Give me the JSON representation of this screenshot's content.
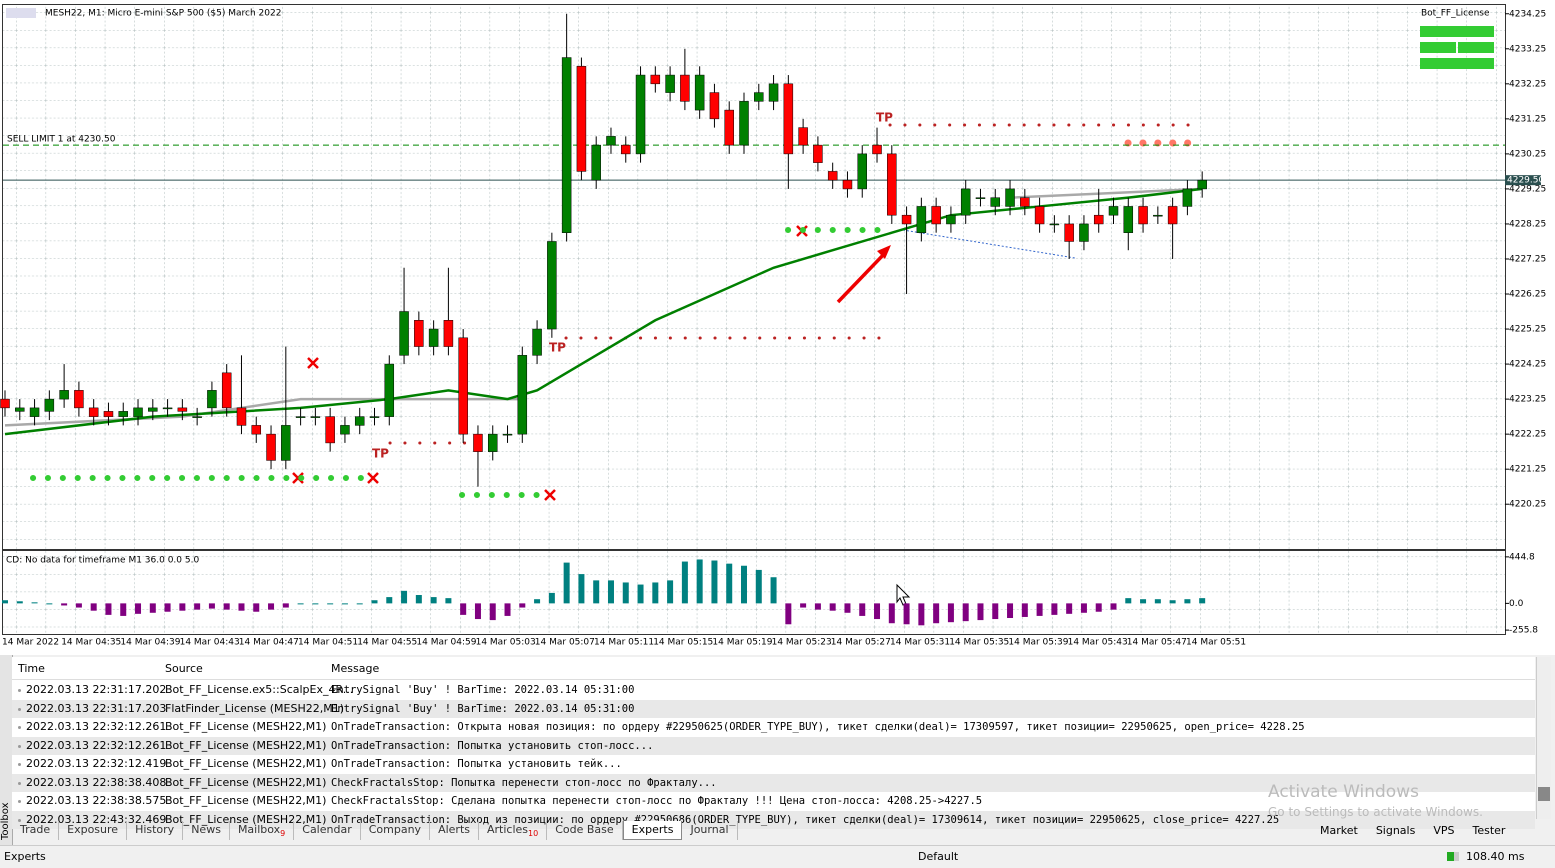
{
  "chart_data": [
    {
      "type": "candlestick",
      "title": "MESH22, M1:  Micro E-mini S&P 500 ($5) March 2022",
      "candles": [
        [
          4223.25,
          4223.5,
          4222.75,
          4223.0
        ],
        [
          4222.9,
          4223.25,
          4222.65,
          4223.0
        ],
        [
          4222.75,
          4223.25,
          4222.5,
          4223.0
        ],
        [
          4222.9,
          4223.5,
          4222.65,
          4223.25
        ],
        [
          4223.25,
          4224.25,
          4223.0,
          4223.5
        ],
        [
          4223.5,
          4223.75,
          4222.75,
          4223.0
        ],
        [
          4223.0,
          4223.25,
          4222.5,
          4222.75
        ],
        [
          4222.9,
          4223.15,
          4222.5,
          4222.75
        ],
        [
          4222.75,
          4223.15,
          4222.5,
          4222.9
        ],
        [
          4222.75,
          4223.25,
          4222.5,
          4223.0
        ],
        [
          4222.9,
          4223.25,
          4222.65,
          4223.0
        ],
        [
          4223.0,
          4223.25,
          4222.75,
          4223.0
        ],
        [
          4223.0,
          4223.25,
          4222.65,
          4222.9
        ],
        [
          4222.75,
          4223.0,
          4222.5,
          4222.75
        ],
        [
          4223.0,
          4223.75,
          4222.75,
          4223.5
        ],
        [
          4224.0,
          4224.25,
          4222.75,
          4223.0
        ],
        [
          4223.0,
          4224.5,
          4222.25,
          4222.5
        ],
        [
          4222.5,
          4222.75,
          4222.0,
          4222.25
        ],
        [
          4222.25,
          4222.5,
          4221.25,
          4221.5
        ],
        [
          4221.5,
          4224.75,
          4221.25,
          4222.5
        ],
        [
          4222.75,
          4223.0,
          4222.5,
          4222.75
        ],
        [
          4222.75,
          4223.0,
          4222.5,
          4222.75
        ],
        [
          4222.75,
          4223.0,
          4221.75,
          4222.0
        ],
        [
          4222.25,
          4222.75,
          4222.0,
          4222.5
        ],
        [
          4222.5,
          4223.0,
          4222.25,
          4222.75
        ],
        [
          4222.75,
          4223.0,
          4222.5,
          4222.75
        ],
        [
          4222.75,
          4224.5,
          4222.5,
          4224.25
        ],
        [
          4224.5,
          4227.0,
          4224.25,
          4225.75
        ],
        [
          4225.5,
          4225.75,
          4224.5,
          4224.75
        ],
        [
          4224.75,
          4225.5,
          4224.5,
          4225.25
        ],
        [
          4225.5,
          4227.0,
          4224.5,
          4224.75
        ],
        [
          4225.0,
          4225.25,
          4222.0,
          4222.25
        ],
        [
          4222.25,
          4222.5,
          4220.75,
          4221.75
        ],
        [
          4221.75,
          4222.5,
          4221.5,
          4222.25
        ],
        [
          4222.25,
          4222.5,
          4222.0,
          4222.25
        ],
        [
          4222.25,
          4224.75,
          4222.0,
          4224.5
        ],
        [
          4224.5,
          4225.5,
          4224.25,
          4225.25
        ],
        [
          4225.25,
          4228.0,
          4225.0,
          4227.75
        ],
        [
          4228.0,
          4234.25,
          4227.75,
          4233.0
        ],
        [
          4232.75,
          4233.0,
          4229.5,
          4229.75
        ],
        [
          4229.5,
          4230.75,
          4229.25,
          4230.5
        ],
        [
          4230.5,
          4231.0,
          4230.25,
          4230.75
        ],
        [
          4230.5,
          4230.75,
          4230.0,
          4230.25
        ],
        [
          4230.25,
          4232.75,
          4230.0,
          4232.5
        ],
        [
          4232.5,
          4232.75,
          4232.0,
          4232.25
        ],
        [
          4232.0,
          4232.75,
          4231.75,
          4232.5
        ],
        [
          4232.5,
          4233.25,
          4231.5,
          4231.75
        ],
        [
          4231.5,
          4232.75,
          4231.25,
          4232.5
        ],
        [
          4232.0,
          4232.25,
          4231.0,
          4231.25
        ],
        [
          4231.5,
          4231.75,
          4230.25,
          4230.5
        ],
        [
          4230.5,
          4232.0,
          4230.25,
          4231.75
        ],
        [
          4231.75,
          4232.25,
          4231.5,
          4232.0
        ],
        [
          4231.75,
          4232.5,
          4231.5,
          4232.25
        ],
        [
          4232.25,
          4232.5,
          4229.25,
          4230.25
        ],
        [
          4231.0,
          4231.25,
          4230.25,
          4230.5
        ],
        [
          4230.5,
          4230.75,
          4229.75,
          4230.0
        ],
        [
          4229.75,
          4230.0,
          4229.25,
          4229.5
        ],
        [
          4229.5,
          4229.75,
          4229.0,
          4229.25
        ],
        [
          4229.25,
          4230.5,
          4229.0,
          4230.25
        ],
        [
          4230.5,
          4231.0,
          4230.0,
          4230.25
        ],
        [
          4230.25,
          4230.5,
          4228.25,
          4228.5
        ],
        [
          4228.5,
          4228.75,
          4226.25,
          4228.25
        ],
        [
          4228.0,
          4229.0,
          4227.75,
          4228.75
        ],
        [
          4228.75,
          4229.0,
          4228.0,
          4228.25
        ],
        [
          4228.25,
          4228.75,
          4228.0,
          4228.5
        ],
        [
          4228.5,
          4229.5,
          4228.25,
          4229.25
        ],
        [
          4229.0,
          4229.25,
          4228.75,
          4229.0
        ],
        [
          4228.75,
          4229.25,
          4228.5,
          4229.0
        ],
        [
          4228.75,
          4229.5,
          4228.5,
          4229.25
        ],
        [
          4229.0,
          4229.25,
          4228.5,
          4228.75
        ],
        [
          4228.75,
          4229.0,
          4228.0,
          4228.25
        ],
        [
          4228.25,
          4228.5,
          4228.0,
          4228.25
        ],
        [
          4228.25,
          4228.5,
          4227.25,
          4227.75
        ],
        [
          4227.75,
          4228.5,
          4227.5,
          4228.25
        ],
        [
          4228.5,
          4229.25,
          4228.0,
          4228.25
        ],
        [
          4228.5,
          4229.0,
          4228.25,
          4228.75
        ],
        [
          4228.0,
          4229.0,
          4227.5,
          4228.75
        ],
        [
          4228.75,
          4229.0,
          4228.0,
          4228.25
        ],
        [
          4228.5,
          4228.75,
          4228.25,
          4228.5
        ],
        [
          4228.75,
          4229.0,
          4227.25,
          4228.25
        ],
        [
          4228.75,
          4229.5,
          4228.5,
          4229.25
        ],
        [
          4229.25,
          4229.75,
          4229.0,
          4229.5
        ]
      ],
      "ma_fast": {
        "x": [
          0,
          10,
          20,
          26,
          30,
          34,
          36,
          40,
          44,
          48,
          52,
          56,
          60,
          64,
          70,
          76,
          81
        ],
        "values": [
          4222.25,
          4222.75,
          4223.0,
          4223.25,
          4223.5,
          4223.25,
          4223.5,
          4224.5,
          4225.5,
          4226.25,
          4227.0,
          4227.5,
          4228.0,
          4228.5,
          4228.75,
          4229.0,
          4229.25
        ]
      },
      "ma_slow": {
        "x": [
          0,
          12,
          20,
          28,
          35,
          null,
          68,
          81
        ],
        "values": [
          4222.5,
          4222.75,
          4223.25,
          4223.25,
          4223.25,
          null,
          4229.0,
          4229.25
        ]
      },
      "ylim": [
        4219.0,
        4234.5
      ],
      "yticks": [
        {
          "value": 4234.25,
          "label": "4234.25"
        },
        {
          "value": 4233.25,
          "label": "4233.25"
        },
        {
          "value": 4232.25,
          "label": "4232.25"
        },
        {
          "value": 4231.25,
          "label": "4231.25"
        },
        {
          "value": 4230.25,
          "label": "4230.25"
        },
        {
          "value": 4229.25,
          "label": "4229.25"
        },
        {
          "value": 4228.25,
          "label": "4228.25"
        },
        {
          "value": 4227.25,
          "label": "4227.25"
        },
        {
          "value": 4226.25,
          "label": "4226.25"
        },
        {
          "value": 4225.25,
          "label": "4225.25"
        },
        {
          "value": 4224.25,
          "label": "4224.25"
        },
        {
          "value": 4223.25,
          "label": "4223.25"
        },
        {
          "value": 4222.25,
          "label": "4222.25"
        },
        {
          "value": 4221.25,
          "label": "4221.25"
        },
        {
          "value": 4220.25,
          "label": "4220.25"
        }
      ],
      "price_line": {
        "value": 4229.5,
        "label": "4229.50"
      },
      "order_line": {
        "value": 4230.5,
        "label": "SELL LIMIT 1 at 4230.50"
      },
      "annotations": [
        "TP",
        "TP",
        "TP"
      ],
      "xtick_labels": [
        "14 Mar 2022",
        "14 Mar 04:35",
        "14 Mar 04:39",
        "14 Mar 04:43",
        "14 Mar 04:47",
        "14 Mar 04:51",
        "14 Mar 04:55",
        "14 Mar 04:59",
        "14 Mar 05:03",
        "14 Mar 05:07",
        "14 Mar 05:11",
        "14 Mar 05:15",
        "14 Mar 05:19",
        "14 Mar 05:23",
        "14 Mar 05:27",
        "14 Mar 05:31",
        "14 Mar 05:35",
        "14 Mar 05:39",
        "14 Mar 05:43",
        "14 Mar 05:47",
        "14 Mar 05:51"
      ],
      "colors": {
        "up": "#008000",
        "down": "#ff0000",
        "ma_fast": "#008000",
        "ma_slow": "#a9a9a9"
      }
    },
    {
      "type": "bar",
      "title": "CD: No data for timeframe M1 36.0 0.0 5.0",
      "values": [
        30,
        20,
        10,
        0,
        -20,
        -40,
        -70,
        -110,
        -120,
        -100,
        -90,
        -80,
        -70,
        -60,
        -50,
        -60,
        -70,
        -80,
        -60,
        -40,
        0,
        0,
        0,
        0,
        0,
        30,
        60,
        120,
        80,
        60,
        50,
        -110,
        -150,
        -160,
        -120,
        -40,
        40,
        100,
        390,
        280,
        220,
        220,
        200,
        180,
        200,
        220,
        400,
        420,
        410,
        380,
        360,
        320,
        250,
        -200,
        -40,
        -60,
        -70,
        -90,
        -120,
        -150,
        -190,
        -200,
        -210,
        -190,
        -180,
        -170,
        -160,
        -150,
        -140,
        -130,
        -120,
        -110,
        -100,
        -90,
        -80,
        -60,
        50,
        40,
        40,
        30,
        40,
        50
      ],
      "ylim": [
        -293,
        501
      ],
      "yticks": [
        {
          "value": 444.8,
          "label": "444.8"
        },
        {
          "value": 0,
          "label": "0.0"
        },
        {
          "value": -255.8,
          "label": "-255.8"
        }
      ],
      "colors": {
        "pos": "#008080",
        "neg": "#800080"
      }
    }
  ],
  "panel": {
    "bot_label": "Bot_FF_License"
  },
  "log": {
    "columns": [
      "Time",
      "Source",
      "Message"
    ],
    "rows": [
      [
        "2022.03.13 22:31:17.202",
        "Bot_FF_License.ex5::ScalpEx_4R...",
        "EntrySignal 'Buy' ! BarTime: 2022.03.14 05:31:00"
      ],
      [
        "2022.03.13 22:31:17.203",
        "FlatFinder_License (MESH22,M1)",
        "EntrySignal 'Buy' ! BarTime: 2022.03.14 05:31:00"
      ],
      [
        "2022.03.13 22:32:12.261",
        "Bot_FF_License (MESH22,M1)",
        "OnTradeTransaction: Открыта новая позиция: по ордеру #22950625(ORDER_TYPE_BUY), тикет сделки(deal)= 17309597, тикет позиции= 22950625, open_price= 4228.25"
      ],
      [
        "2022.03.13 22:32:12.261",
        "Bot_FF_License (MESH22,M1)",
        "OnTradeTransaction: Попытка установить стоп-лосс..."
      ],
      [
        "2022.03.13 22:32:12.419",
        "Bot_FF_License (MESH22,M1)",
        "OnTradeTransaction: Попытка установить тейк..."
      ],
      [
        "2022.03.13 22:38:38.408",
        "Bot_FF_License (MESH22,M1)",
        "CheckFractalsStop: Попытка перенести стоп-лосс по Фракталу..."
      ],
      [
        "2022.03.13 22:38:38.575",
        "Bot_FF_License (MESH22,M1)",
        "CheckFractalsStop: Сделана попытка перенести стоп-лосс по Фракталу !!! Цена стоп-лосса: 4208.25->4227.5"
      ],
      [
        "2022.03.13 22:43:32.469",
        "Bot_FF_License (MESH22,M1)",
        "OnTradeTransaction: Выход из позиции: по ордеру #22950686(ORDER_TYPE_BUY), тикет сделки(deal)= 17309614, тикет позиции= 22950625, close_price= 4227.25"
      ]
    ]
  },
  "tabs": [
    {
      "label": "Trade"
    },
    {
      "label": "Exposure"
    },
    {
      "label": "History"
    },
    {
      "label": "News"
    },
    {
      "label": "Mailbox",
      "badge": "9"
    },
    {
      "label": "Calendar"
    },
    {
      "label": "Company"
    },
    {
      "label": "Alerts"
    },
    {
      "label": "Articles",
      "badge": "10"
    },
    {
      "label": "Code Base"
    },
    {
      "label": "Experts",
      "active": true
    },
    {
      "label": "Journal"
    }
  ],
  "right_tabs": [
    "Market",
    "Signals",
    "VPS",
    "Tester"
  ],
  "toolbox": "Toolbox",
  "status": {
    "left": "Experts",
    "profile": "Default",
    "ping": "108.40 ms"
  },
  "watermark": {
    "title": "Activate Windows",
    "text": "Go to Settings to activate Windows."
  }
}
